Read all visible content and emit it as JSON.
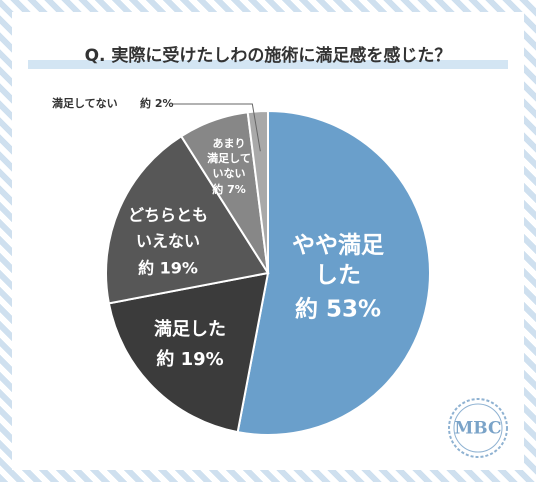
{
  "chart_data": {
    "type": "pie",
    "title": "Q. 実際に受けたしわの施術に満足感を感じた？",
    "categories": [
      [
        "やや満足",
        "した"
      ],
      [
        "満足した"
      ],
      [
        "どちらとも",
        "いえない"
      ],
      [
        "あまり",
        "満足して",
        "いない"
      ],
      [
        "満足してない"
      ]
    ],
    "values": [
      53,
      19,
      19,
      7,
      2
    ],
    "value_labels": [
      "約 53%",
      "約 19%",
      "約 19%",
      "約 7%",
      "約 2%"
    ],
    "colors": [
      "#6a9fcb",
      "#3b3b3b",
      "#575757",
      "#878787",
      "#a9a9a9"
    ]
  },
  "logo": "MBC"
}
